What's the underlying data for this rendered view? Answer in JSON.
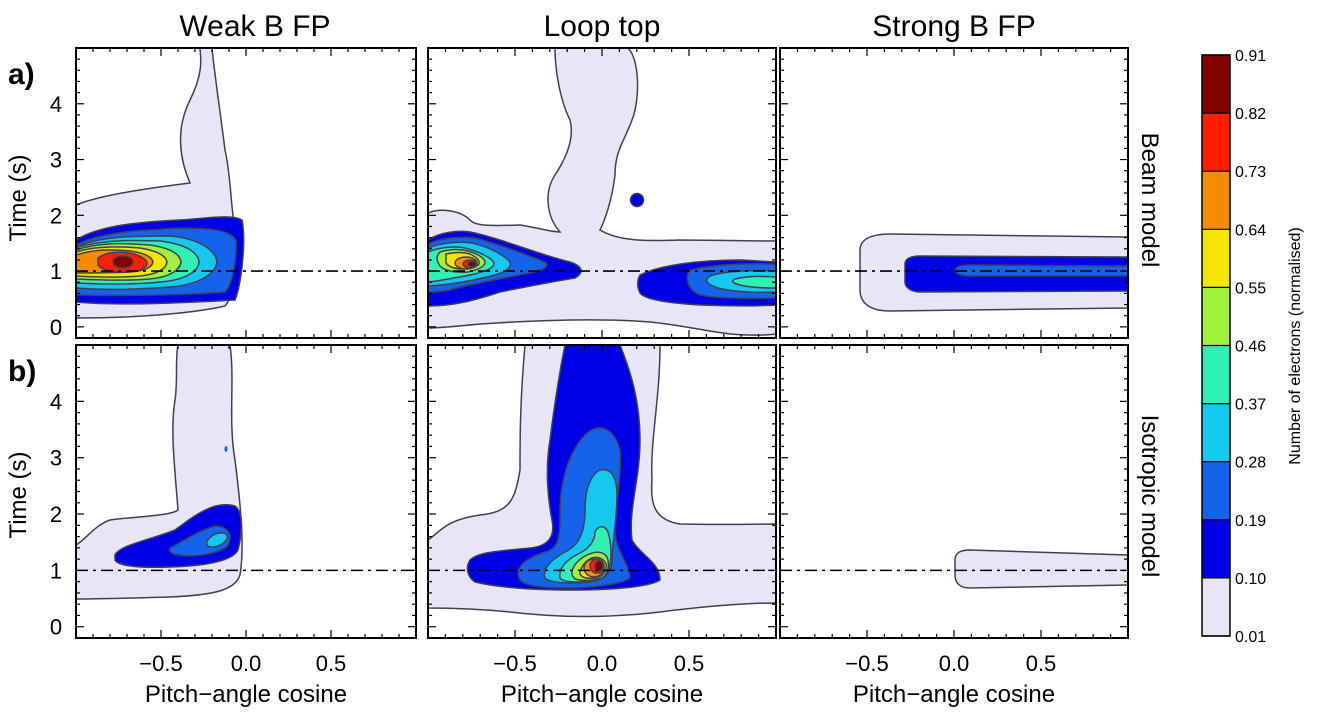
{
  "figure": {
    "columns": [
      "Weak B FP",
      "Loop top",
      "Strong B FP"
    ],
    "rows": [
      {
        "label": "a)",
        "model": "Beam model"
      },
      {
        "label": "b)",
        "model": "Isotropic model"
      }
    ],
    "xlabel": "Pitch−angle cosine",
    "ylabel": "Time (s)",
    "xticks": [
      {
        "v": -0.5,
        "t": "−0.5"
      },
      {
        "v": 0.0,
        "t": "0.0"
      },
      {
        "v": 0.5,
        "t": "0.5"
      }
    ],
    "yticks": [
      {
        "v": 0,
        "t": "0"
      },
      {
        "v": 1,
        "t": "1"
      },
      {
        "v": 2,
        "t": "2"
      },
      {
        "v": 3,
        "t": "3"
      },
      {
        "v": 4,
        "t": "4"
      }
    ],
    "colorbar": {
      "title": "Number of electrons (normalised)",
      "levels": [
        "0.01",
        "0.10",
        "0.19",
        "0.28",
        "0.37",
        "0.46",
        "0.55",
        "0.64",
        "0.73",
        "0.82",
        "0.91"
      ],
      "colors": [
        "#e6e6f7",
        "#0000e6",
        "#1463ea",
        "#14c8f0",
        "#30f0b4",
        "#a0f040",
        "#f5e600",
        "#f58c00",
        "#ff1e00",
        "#820000"
      ]
    }
  },
  "chart_data": {
    "type": "heatmap",
    "xlim": [
      -1,
      1
    ],
    "ylim": [
      -0.2,
      5
    ],
    "reference_line_time": 1.0,
    "series": [
      {
        "row": "Beam model",
        "column": "Weak B FP",
        "peak": {
          "x": -0.78,
          "y": 1.35,
          "value": 0.91
        }
      },
      {
        "row": "Beam model",
        "column": "Loop top",
        "peak": {
          "x": -0.8,
          "y": 1.3,
          "value": 0.91
        }
      },
      {
        "row": "Beam model",
        "column": "Strong B FP",
        "peak": {
          "x": 0.5,
          "y": 1.2,
          "value": 0.15
        }
      },
      {
        "row": "Isotropic model",
        "column": "Weak B FP",
        "peak": {
          "x": -0.2,
          "y": 1.7,
          "value": 0.25
        }
      },
      {
        "row": "Isotropic model",
        "column": "Loop top",
        "peak": {
          "x": 0.0,
          "y": 1.2,
          "value": 0.91
        }
      },
      {
        "row": "Isotropic model",
        "column": "Strong B FP",
        "peak": {
          "x": 0.5,
          "y": 1.2,
          "value": 0.05
        }
      }
    ]
  }
}
